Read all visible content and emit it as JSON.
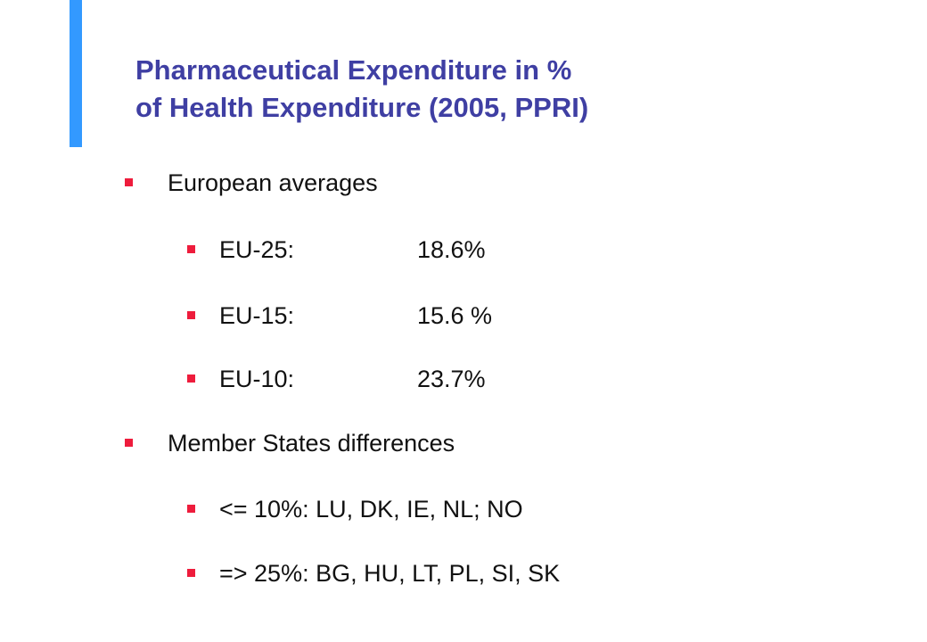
{
  "slide": {
    "title_line1": "Pharmaceutical Expenditure in %",
    "title_line2": "of Health Expenditure (2005, PPRI)",
    "accent_color": "#3399ff",
    "title_color": "#3f3fa3",
    "bullet_color": "#ee1c3c",
    "sections": [
      {
        "label": "European averages",
        "items": [
          {
            "label": "EU-25:",
            "value": "18.6%"
          },
          {
            "label": "EU-15:",
            "value": "15.6 %"
          },
          {
            "label": "EU-10:",
            "value": "23.7%"
          }
        ]
      },
      {
        "label": "Member States differences",
        "items": [
          {
            "label": "<= 10%: LU, DK, IE, NL; NO"
          },
          {
            "label": "=> 25%: BG, HU, LT, PL, SI, SK"
          }
        ]
      }
    ]
  }
}
